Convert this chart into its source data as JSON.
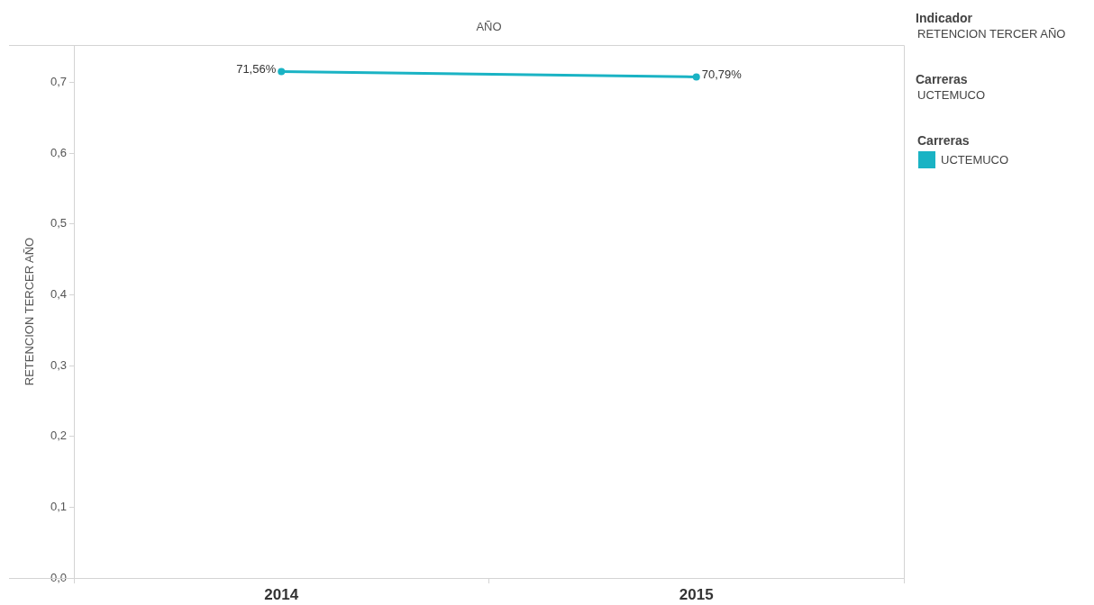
{
  "chart_data": {
    "type": "line",
    "xlabel": "AÑO",
    "ylabel": "RETENCION TERCER AÑO",
    "categories": [
      "2014",
      "2015"
    ],
    "series": [
      {
        "name": "UCTEMUCO",
        "color": "#1ab3c4",
        "values": [
          0.7156,
          0.7079
        ],
        "value_labels": [
          "71,56%",
          "70,79%"
        ]
      }
    ],
    "ylim": [
      0,
      0.753
    ],
    "yticks": [
      {
        "value": 0,
        "label": "0,0"
      },
      {
        "value": 0.1,
        "label": "0,1"
      },
      {
        "value": 0.2,
        "label": "0,2"
      },
      {
        "value": 0.3,
        "label": "0,3"
      },
      {
        "value": 0.4,
        "label": "0,4"
      },
      {
        "value": 0.5,
        "label": "0,5"
      },
      {
        "value": 0.6,
        "label": "0,6"
      },
      {
        "value": 0.7,
        "label": "0,7"
      }
    ],
    "grid": false,
    "legend": "right",
    "legend_title": "Carreras",
    "marker": "circle",
    "line_style": "solid",
    "annotations": [
      "Indicador\nRETENCION TERCER AÑO",
      "Carreras\nUCTEMUCO"
    ]
  }
}
